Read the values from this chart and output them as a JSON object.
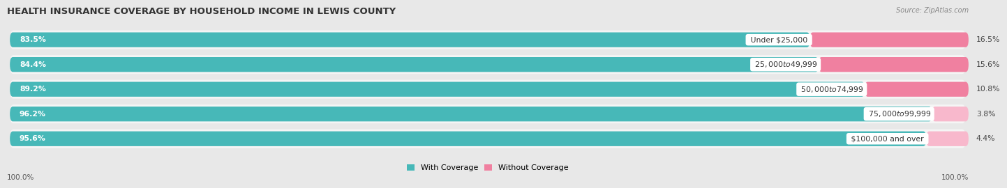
{
  "title": "HEALTH INSURANCE COVERAGE BY HOUSEHOLD INCOME IN LEWIS COUNTY",
  "source": "Source: ZipAtlas.com",
  "categories": [
    "Under $25,000",
    "$25,000 to $49,999",
    "$50,000 to $74,999",
    "$75,000 to $99,999",
    "$100,000 and over"
  ],
  "with_coverage": [
    83.5,
    84.4,
    89.2,
    96.2,
    95.6
  ],
  "without_coverage": [
    16.5,
    15.6,
    10.8,
    3.8,
    4.4
  ],
  "color_with": "#47b8b8",
  "color_without": "#f080a0",
  "color_without_light": "#f8b8cc",
  "background_color": "#e8e8e8",
  "bar_background": "#f5f5f5",
  "title_fontsize": 9.5,
  "label_fontsize": 7.8,
  "legend_fontsize": 8,
  "bottom_label": "100.0%"
}
